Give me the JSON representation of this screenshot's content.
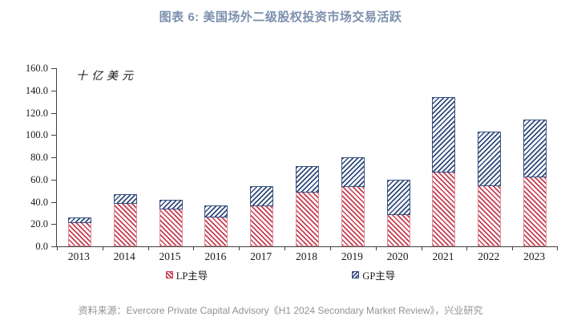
{
  "title": "图表 6: 美国场外二级股权投资市场交易活跃",
  "source_note": "资料来源：Evercore Private Capital Advisory《H1 2024 Secondary Market Review》，兴业研究",
  "colors": {
    "title_slate_blue": "#7b8fad",
    "lp_red": "#c63c4f",
    "gp_navy": "#30497b",
    "axis": "#404040",
    "source_gray": "#8f9296"
  },
  "chart_data": {
    "type": "bar",
    "stacked": true,
    "title": "图表 6: 美国场外二级股权投资市场交易活跃",
    "unit_label": "十亿美元",
    "categories": [
      "2013",
      "2014",
      "2015",
      "2016",
      "2017",
      "2018",
      "2019",
      "2020",
      "2021",
      "2022",
      "2023"
    ],
    "series": [
      {
        "name": "LP主导",
        "color": "#c63c4f",
        "hatch": "\\",
        "values": [
          21,
          38,
          33,
          26,
          36,
          48,
          53,
          28,
          66,
          54,
          62
        ]
      },
      {
        "name": "GP主导",
        "color": "#30497b",
        "hatch": "/",
        "values": [
          5,
          9,
          9,
          11,
          18,
          24,
          27,
          32,
          68,
          49,
          52
        ]
      }
    ],
    "totals": [
      26,
      47,
      42,
      37,
      54,
      72,
      80,
      60,
      134,
      103,
      114
    ],
    "ylim": [
      0,
      160
    ],
    "ytick_step": 20,
    "ytick_format": "0.0",
    "xlabel": "",
    "ylabel": "十亿美元",
    "grid": false,
    "legend_position": "bottom"
  }
}
